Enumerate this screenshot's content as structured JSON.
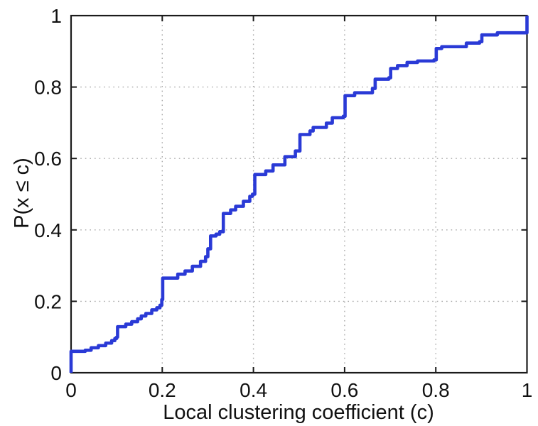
{
  "chart_data": {
    "type": "line",
    "style": "empirical-cdf-step",
    "title": "",
    "xlabel": "Local clustering coefficient (c)",
    "ylabel": "P(x ≤ c)",
    "xlim": [
      0,
      1
    ],
    "ylim": [
      0,
      1
    ],
    "x_ticks": {
      "values": [
        0,
        0.2,
        0.4,
        0.6,
        0.8,
        1
      ],
      "labels": [
        "0",
        "0.2",
        "0.4",
        "0.6",
        "0.8",
        "1"
      ]
    },
    "y_ticks": {
      "values": [
        0,
        0.2,
        0.4,
        0.6,
        0.8,
        1
      ],
      "labels": [
        "0",
        "0.2",
        "0.4",
        "0.6",
        "0.8",
        "1"
      ]
    },
    "grid_values": [
      0.2,
      0.4,
      0.6,
      0.8
    ],
    "grid": "dotted",
    "legend": "none",
    "colors": {
      "line": "#2a3ad6",
      "grid": "#a8a8a8",
      "axis": "#1b1b1b",
      "background": "#ffffff",
      "text": "#111111"
    },
    "points": [
      [
        0.0,
        0.06
      ],
      [
        0.031,
        0.063
      ],
      [
        0.044,
        0.07
      ],
      [
        0.06,
        0.076
      ],
      [
        0.076,
        0.083
      ],
      [
        0.089,
        0.09
      ],
      [
        0.096,
        0.096
      ],
      [
        0.1,
        0.1
      ],
      [
        0.102,
        0.129
      ],
      [
        0.12,
        0.136
      ],
      [
        0.133,
        0.143
      ],
      [
        0.146,
        0.151
      ],
      [
        0.154,
        0.159
      ],
      [
        0.164,
        0.166
      ],
      [
        0.177,
        0.176
      ],
      [
        0.188,
        0.182
      ],
      [
        0.195,
        0.189
      ],
      [
        0.199,
        0.205
      ],
      [
        0.201,
        0.265
      ],
      [
        0.234,
        0.276
      ],
      [
        0.25,
        0.285
      ],
      [
        0.266,
        0.298
      ],
      [
        0.284,
        0.312
      ],
      [
        0.295,
        0.325
      ],
      [
        0.3,
        0.347
      ],
      [
        0.306,
        0.383
      ],
      [
        0.318,
        0.388
      ],
      [
        0.326,
        0.395
      ],
      [
        0.334,
        0.446
      ],
      [
        0.35,
        0.456
      ],
      [
        0.361,
        0.466
      ],
      [
        0.378,
        0.48
      ],
      [
        0.392,
        0.494
      ],
      [
        0.398,
        0.5
      ],
      [
        0.403,
        0.555
      ],
      [
        0.427,
        0.565
      ],
      [
        0.443,
        0.582
      ],
      [
        0.469,
        0.605
      ],
      [
        0.492,
        0.621
      ],
      [
        0.502,
        0.667
      ],
      [
        0.524,
        0.677
      ],
      [
        0.531,
        0.687
      ],
      [
        0.56,
        0.699
      ],
      [
        0.573,
        0.714
      ],
      [
        0.597,
        0.718
      ],
      [
        0.601,
        0.776
      ],
      [
        0.622,
        0.784
      ],
      [
        0.661,
        0.796
      ],
      [
        0.667,
        0.822
      ],
      [
        0.697,
        0.826
      ],
      [
        0.701,
        0.852
      ],
      [
        0.716,
        0.86
      ],
      [
        0.737,
        0.869
      ],
      [
        0.76,
        0.873
      ],
      [
        0.796,
        0.876
      ],
      [
        0.801,
        0.908
      ],
      [
        0.813,
        0.913
      ],
      [
        0.867,
        0.923
      ],
      [
        0.896,
        0.927
      ],
      [
        0.901,
        0.946
      ],
      [
        0.935,
        0.952
      ],
      [
        1.0,
        1.0
      ]
    ]
  }
}
